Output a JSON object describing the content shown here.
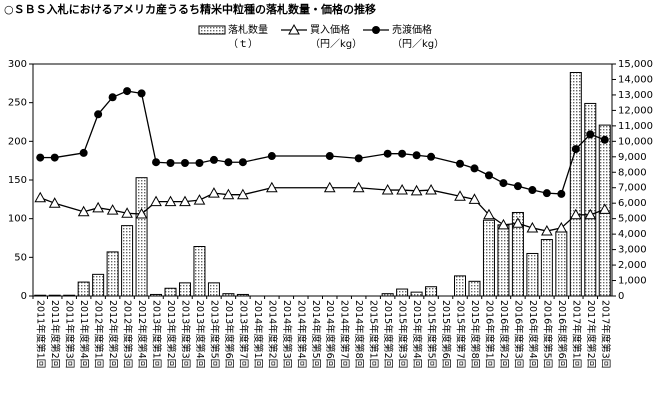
{
  "chart_data": {
    "type": "bar-line",
    "title": "○ＳＢＳ入札におけるアメリカ産うるち精米中粒種の落札数量・価格の推移",
    "categories": [
      "2011年度第1回",
      "2011年度第2回",
      "2011年度第3回",
      "2011年度第4回",
      "2012年度第1回",
      "2012年度第2回",
      "2012年度第3回",
      "2012年度第4回",
      "2013年度第1回",
      "2013年度第2回",
      "2013年度第3回",
      "2013年度第4回",
      "2013年度第5回",
      "2013年度第6回",
      "2013年度第7回",
      "2014年度第1回",
      "2014年度第2回",
      "2014年度第3回",
      "2014年度第4回",
      "2014年度第5回",
      "2014年度第6回",
      "2014年度第7回",
      "2014年度第8回",
      "2015年度第1回",
      "2015年度第2回",
      "2015年度第3回",
      "2015年度第4回",
      "2015年度第5回",
      "2015年度第6回",
      "2015年度第7回",
      "2015年度第8回",
      "2016年度第1回",
      "2016年度第2回",
      "2016年度第3回",
      "2016年度第4回",
      "2016年度第5回",
      "2016年度第6回",
      "2017年度第1回",
      "2017年度第2回",
      "2017年度第3回"
    ],
    "series": [
      {
        "name": "落札数量",
        "unit": "（ｔ）",
        "type": "bar",
        "color": "#000000",
        "values": [
          1,
          1,
          1,
          18,
          28,
          57,
          91,
          153,
          2,
          10,
          17,
          64,
          17,
          3,
          2,
          0,
          0,
          0,
          0,
          0,
          0,
          0,
          0,
          0,
          3,
          9,
          5,
          12,
          0,
          26,
          19,
          98,
          92,
          108,
          55,
          73,
          83,
          289,
          249,
          221
        ]
      },
      {
        "name": "買入価格",
        "unit": "（円／kg）",
        "type": "line",
        "marker": "triangle",
        "axis": "y2",
        "color": "#000000",
        "values": [
          6350,
          6000,
          null,
          5450,
          5700,
          5550,
          5350,
          5300,
          6100,
          6100,
          6100,
          6200,
          6650,
          6550,
          6550,
          null,
          7000,
          null,
          null,
          null,
          7000,
          null,
          7000,
          null,
          6850,
          6850,
          6800,
          6850,
          null,
          6450,
          6250,
          5250,
          4600,
          4700,
          4400,
          4200,
          4400,
          5250,
          5250,
          5600
        ]
      },
      {
        "name": "売渡価格",
        "unit": "（円／kg）",
        "type": "line",
        "marker": "circle",
        "axis": "y2",
        "color": "#000000",
        "values": [
          8950,
          8950,
          null,
          9250,
          11750,
          12850,
          13250,
          13100,
          8650,
          8600,
          8600,
          8600,
          8800,
          8650,
          8650,
          null,
          9050,
          null,
          null,
          null,
          9050,
          null,
          8900,
          null,
          9200,
          9200,
          9100,
          9000,
          null,
          8550,
          8250,
          7800,
          7300,
          7100,
          6850,
          6650,
          6600,
          9500,
          10450,
          10100
        ]
      }
    ],
    "ylim": [
      0,
      300
    ],
    "yticks": [
      0,
      50,
      100,
      150,
      200,
      250,
      300
    ],
    "y2lim": [
      0,
      15000
    ],
    "y2ticks": [
      0,
      {
        "value": 1000,
        "label": "1,000"
      },
      {
        "value": 2000,
        "label": "2,000"
      },
      {
        "value": 3000,
        "label": "3,000"
      },
      {
        "value": 4000,
        "label": "4,000"
      },
      {
        "value": 5000,
        "label": "5,000"
      },
      {
        "value": 6000,
        "label": "6,000"
      },
      {
        "value": 7000,
        "label": "7,000"
      },
      {
        "value": 8000,
        "label": "8,000"
      },
      {
        "value": 9000,
        "label": "9,000"
      },
      {
        "value": 10000,
        "label": "10,000"
      },
      {
        "value": 11000,
        "label": "11,000"
      },
      {
        "value": 12000,
        "label": "12,000"
      },
      {
        "value": 13000,
        "label": "13,000"
      },
      {
        "value": 14000,
        "label": "14,000"
      },
      {
        "value": 15000,
        "label": "15,000"
      }
    ],
    "connect_gaps": true,
    "grid": false
  }
}
